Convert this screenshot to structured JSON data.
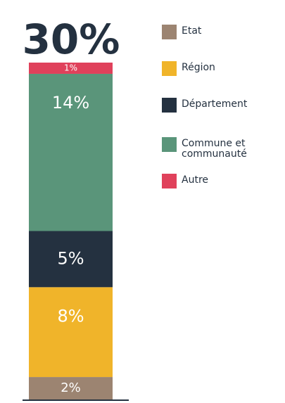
{
  "chart_data": {
    "type": "bar",
    "stacked": true,
    "title": "30%",
    "categories": [
      null
    ],
    "series": [
      {
        "name": "Etat",
        "color": "#9c8471",
        "values": [
          2
        ],
        "value_labels": [
          "2%"
        ]
      },
      {
        "name": "Région",
        "color": "#f0b42a",
        "values": [
          8
        ],
        "value_labels": [
          "8%"
        ]
      },
      {
        "name": "Département",
        "color": "#243140",
        "values": [
          5
        ],
        "value_labels": [
          "5%"
        ]
      },
      {
        "name": "Commune et communauté",
        "color": "#5a957a",
        "values": [
          14
        ],
        "value_labels": [
          "14%"
        ]
      },
      {
        "name": "Autre",
        "color": "#e0415b",
        "values": [
          1
        ],
        "value_labels": [
          "1%"
        ]
      }
    ]
  }
}
